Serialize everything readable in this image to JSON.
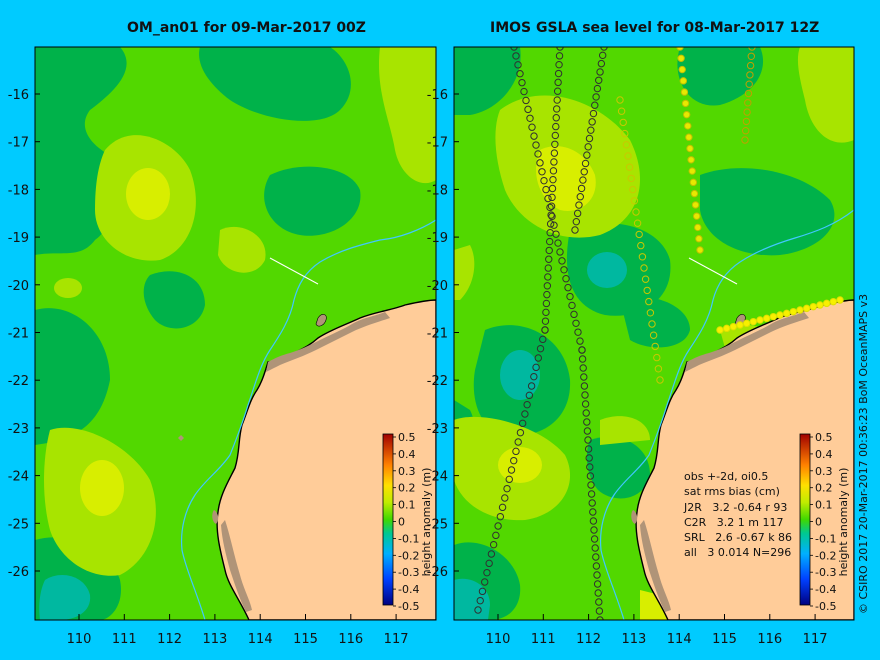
{
  "left_panel": {
    "title": "OM_an01 for 09-Mar-2017 00Z",
    "colorbar_label": "height anomaly (m)"
  },
  "right_panel": {
    "title": "IMOS GSLA sea level  for 08-Mar-2017 12Z",
    "colorbar_label": "height anomaly (m)",
    "stats": {
      "line1": "obs +-2d, oi0.5",
      "line2": "sat rms bias (cm)",
      "line3": "J2R   3.2 -0.64 r 93",
      "line4": "C2R   3.2 1 m 117",
      "line5": "SRL   2.6 -0.67 k 86",
      "line6": "all   3 0.014 N=296"
    }
  },
  "latitude_ticks": [
    "-16",
    "-17",
    "-18",
    "-19",
    "-20",
    "-21",
    "-22",
    "-23",
    "-24",
    "-25",
    "-26"
  ],
  "longitude_ticks": [
    "110",
    "111",
    "112",
    "113",
    "114",
    "115",
    "116",
    "117"
  ],
  "colorbar_ticks": [
    "0.5",
    "0.4",
    "0.3",
    "0.2",
    "0.1",
    "0",
    "-0.1",
    "-0.2",
    "-0.3",
    "-0.4",
    "-0.5"
  ],
  "credit": "© CSIRO 2017   20-Mar-2017 00:36:23 BoM OceanMAPS v3",
  "colors": {
    "background": "#00cbff",
    "land": "#ffcc99",
    "coast": "#000000",
    "islands": "#b09478",
    "river": "#40c8ff",
    "base_sea": "#52d800",
    "positive": "#a8e400",
    "strong_positive": "#d8ee00",
    "negative": "#00b24a",
    "strong_negative": "#00b8a0"
  }
}
